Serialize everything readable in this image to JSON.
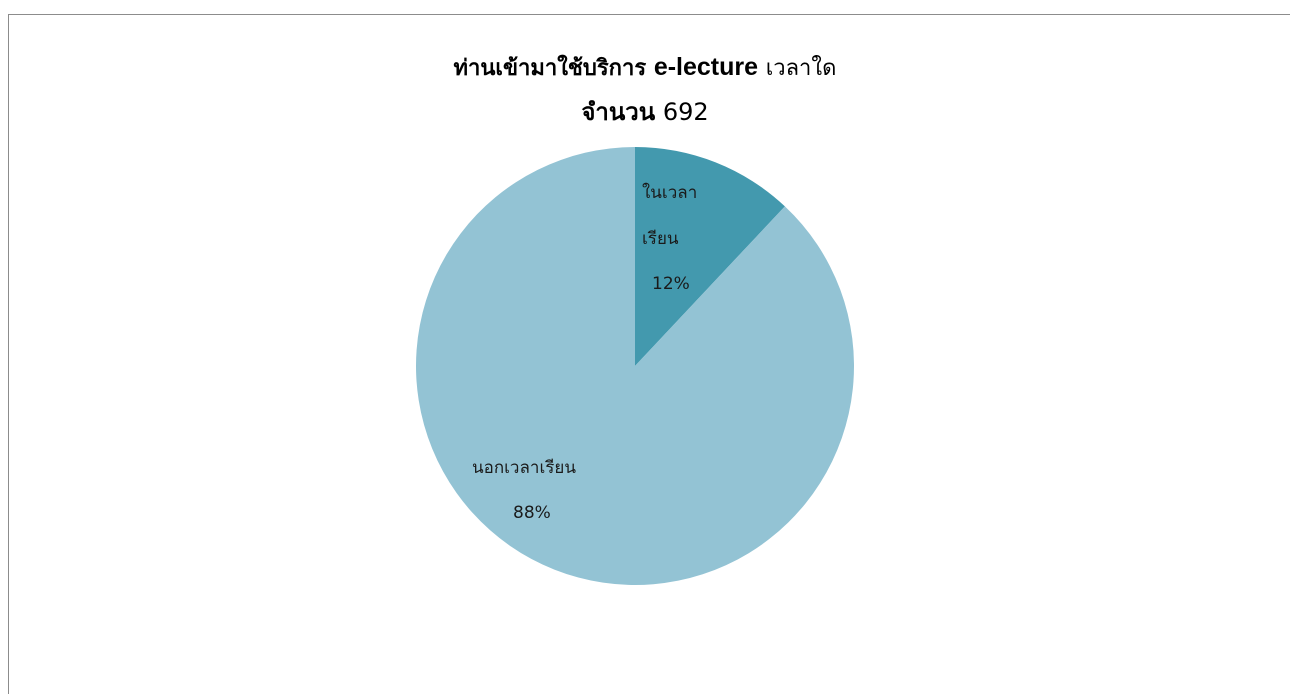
{
  "chart_data": {
    "type": "pie",
    "title_part1": "ท่านเข้ามาใช้บริการ",
    "title_brand": "e-lecture",
    "title_part2": "เวลาใด",
    "subtitle_label": "จำนวน",
    "subtitle_value": "692",
    "slices": [
      {
        "label_lines": [
          "ในเวลา",
          "เรียน"
        ],
        "percent_label": "12%",
        "value": 12,
        "color": "#4399ae"
      },
      {
        "label_lines": [
          "นอกเวลาเรียน"
        ],
        "percent_label": "88%",
        "value": 88,
        "color": "#93c3d4"
      }
    ]
  }
}
